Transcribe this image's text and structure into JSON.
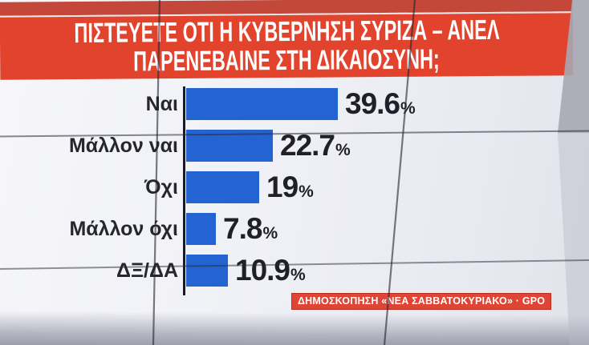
{
  "screen": {
    "title_line1": "ΠΙΣΤΕΥΕΤΕ ΟΤΙ Η ΚΥΒΕΡΝΗΣΗ ΣΥΡΙΖΑ – ΑΝΕΛ",
    "title_line2": "ΠΑΡΕΝΕΒΑΙΝΕ ΣΤΗ ΔΙΚΑΙΟΣΥΝΗ;",
    "source_badge": "ΔΗΜΟΣΚΟΠΗΣΗ «ΝΕΑ ΣΑΒΒΑΤΟΚΥΡΙΑΚΟ» · GPO"
  },
  "colors": {
    "banner_red": "#e2432d",
    "banner_top_strip_red": "#c4483a",
    "bar_blue": "#2464d2",
    "text_dark": "#26262e",
    "badge_red": "#e04434",
    "background_gray": "#f0f1f6"
  },
  "chart_data": {
    "type": "bar",
    "orientation": "horizontal",
    "title": "ΠΙΣΤΕΥΕΤΕ ΟΤΙ Η ΚΥΒΕΡΝΗΣΗ ΣΥΡΙΖΑ – ΑΝΕΛ ΠΑΡΕΝΕΒΑΙΝΕ ΣΤΗ ΔΙΚΑΙΟΣΥΝΗ;",
    "categories": [
      "Ναι",
      "Μάλλον ναι",
      "Όχι",
      "Μάλλον όχι",
      "ΔΞ/ΔΑ"
    ],
    "values": [
      39.6,
      22.7,
      19,
      7.8,
      10.9
    ],
    "value_labels": [
      "39.6",
      "22.7",
      "19",
      "7.8",
      "10.9"
    ],
    "unit": "%",
    "xlim": [
      0,
      45
    ],
    "grid": false,
    "legend": false,
    "source": "ΔΗΜΟΣΚΟΠΗΣΗ «ΝΕΑ ΣΑΒΒΑΤΟΚΥΡΙΑΚΟ» · GPO"
  }
}
